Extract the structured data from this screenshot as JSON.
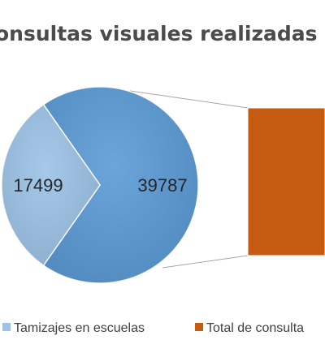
{
  "chart_data": {
    "type": "pie",
    "variant": "pie-of-bar",
    "title": "onsultas visuales realizadas por I",
    "slices": [
      {
        "name": "Tamizajes en escuelas",
        "value": 17499,
        "color": "#9dc3e6",
        "shown_in": "pie"
      },
      {
        "name": "",
        "value": 39787,
        "color": "#5b9bd5",
        "shown_in": "pie"
      }
    ],
    "bar": {
      "name": "Total de consulta",
      "color": "#c55a11"
    },
    "legend": {
      "placement": "bottom",
      "entries": [
        {
          "label": "Tamizajes en escuelas",
          "color": "#9dc3e6"
        },
        {
          "label": "Total de consulta",
          "color": "#c55a11"
        }
      ]
    }
  }
}
